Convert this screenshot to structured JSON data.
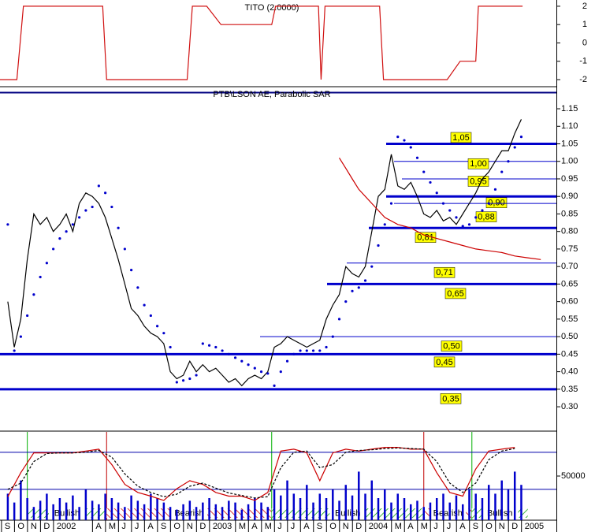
{
  "chart_data": [
    {
      "type": "line",
      "title": "TITO (2.0000)",
      "x": [
        -0.6,
        0.7,
        1.2,
        7.3,
        7.6,
        13.8,
        14.2,
        15.3,
        16.4,
        20.3,
        20.6,
        23.9,
        24.1,
        24.4,
        28.6,
        28.9,
        33.8,
        34.8,
        36.0,
        36.2,
        39.6
      ],
      "values": [
        -2,
        -2,
        2,
        2,
        -2,
        -2,
        2,
        2,
        1,
        1,
        2,
        2,
        -2,
        2,
        2,
        -2,
        -2,
        -1,
        -1,
        2,
        2
      ],
      "color": "#d01010",
      "xlim": [
        -0.6,
        42.2
      ],
      "ylim": [
        -2.3,
        2.34
      ],
      "yticks": [
        -2,
        -1,
        0,
        1,
        2
      ]
    },
    {
      "type": "line",
      "title": "PTB\\LSON AE, Parabolic SAR",
      "x": [
        0,
        0.5,
        1,
        1.5,
        2,
        2.5,
        3,
        3.5,
        4,
        4.5,
        5,
        5.5,
        6,
        6.5,
        7,
        7.5,
        8,
        8.5,
        9,
        9.5,
        10,
        10.5,
        11,
        11.5,
        12,
        12.5,
        13,
        13.5,
        14,
        14.5,
        15,
        15.5,
        16,
        16.5,
        17,
        17.5,
        18,
        18.5,
        19,
        19.5,
        20,
        20.5,
        21,
        21.5,
        22,
        22.5,
        23,
        23.5,
        24,
        24.5,
        25,
        25.5,
        26,
        26.5,
        27,
        27.5,
        28,
        28.5,
        29,
        29.5,
        30,
        30.5,
        31,
        31.5,
        32,
        32.5,
        33,
        33.5,
        34,
        34.5,
        35,
        35.5,
        36,
        36.5,
        37,
        37.5,
        38,
        38.5,
        39,
        39.5
      ],
      "series": [
        {
          "color": "#000000",
          "values": [
            0.6,
            0.47,
            0.55,
            0.72,
            0.85,
            0.82,
            0.84,
            0.8,
            0.82,
            0.85,
            0.8,
            0.88,
            0.91,
            0.9,
            0.88,
            0.84,
            0.78,
            0.72,
            0.65,
            0.58,
            0.56,
            0.53,
            0.51,
            0.5,
            0.48,
            0.4,
            0.38,
            0.39,
            0.43,
            0.4,
            0.42,
            0.4,
            0.41,
            0.39,
            0.37,
            0.38,
            0.36,
            0.38,
            0.39,
            0.38,
            0.4,
            0.47,
            0.48,
            0.5,
            0.49,
            0.48,
            0.47,
            0.48,
            0.49,
            0.55,
            0.59,
            0.62,
            0.7,
            0.68,
            0.67,
            0.7,
            0.8,
            0.9,
            0.92,
            1.02,
            0.93,
            0.92,
            0.94,
            0.9,
            0.85,
            0.84,
            0.86,
            0.83,
            0.84,
            0.82,
            0.85,
            0.88,
            0.91,
            0.95,
            0.97,
            1.0,
            1.03,
            1.03,
            1.08,
            1.12
          ]
        },
        {
          "color": "#0000cc",
          "style": "dots",
          "values": [
            0.82,
            0.46,
            0.5,
            0.56,
            0.62,
            0.67,
            0.71,
            0.75,
            0.78,
            0.8,
            0.82,
            0.84,
            0.86,
            0.87,
            0.93,
            0.91,
            0.87,
            0.81,
            0.75,
            0.69,
            0.64,
            0.59,
            0.56,
            0.53,
            0.51,
            0.47,
            0.37,
            0.375,
            0.38,
            0.39,
            0.48,
            0.475,
            0.47,
            0.46,
            0.45,
            0.44,
            0.43,
            0.42,
            0.41,
            0.4,
            0.395,
            0.36,
            0.4,
            0.43,
            0.45,
            0.46,
            0.46,
            0.46,
            0.46,
            0.47,
            0.5,
            0.55,
            0.6,
            0.63,
            0.64,
            0.66,
            0.7,
            0.76,
            0.82,
            0.88,
            1.07,
            1.06,
            1.04,
            1.01,
            0.97,
            0.94,
            0.91,
            0.88,
            0.86,
            0.84,
            0.815,
            0.82,
            0.84,
            0.86,
            0.88,
            0.92,
            0.97,
            1.0,
            1.04,
            1.07
          ]
        },
        {
          "color": "#cc0000",
          "x": [
            25.5,
            26,
            26.5,
            27,
            28,
            29,
            30,
            31,
            32,
            33,
            34,
            35,
            36,
            37,
            38,
            39,
            40,
            41
          ],
          "values": [
            1.01,
            0.98,
            0.95,
            0.92,
            0.88,
            0.84,
            0.82,
            0.81,
            0.79,
            0.78,
            0.77,
            0.76,
            0.75,
            0.745,
            0.74,
            0.73,
            0.725,
            0.72
          ]
        }
      ],
      "levels": [
        1.05,
        1.0,
        0.95,
        0.9,
        0.88,
        0.81,
        0.71,
        0.65,
        0.5,
        0.45,
        0.35
      ],
      "level_labels": [
        "1,05",
        "1,00",
        "0,95",
        "0,90",
        "0,88",
        "0,81",
        "0,71",
        "0,65",
        "0,50",
        "0,45",
        "0,35"
      ],
      "level_color": "#0000cc",
      "label_color": "#ffff00",
      "xlim": [
        -0.6,
        42.2
      ],
      "ylim": [
        0.235,
        1.195
      ],
      "yticks": [
        {
          "value": 0.3,
          "label": "0.30"
        },
        {
          "value": 0.35,
          "label": "0.35"
        },
        {
          "value": 0.4,
          "label": "0.40"
        },
        {
          "value": 0.45,
          "label": "0.45"
        },
        {
          "value": 0.5,
          "label": "0.50"
        },
        {
          "value": 0.55,
          "label": "0.55"
        },
        {
          "value": 0.6,
          "label": "0.60"
        },
        {
          "value": 0.65,
          "label": "0.65"
        },
        {
          "value": 0.7,
          "label": "0.70"
        },
        {
          "value": 0.75,
          "label": "0.75"
        },
        {
          "value": 0.8,
          "label": "0.80"
        },
        {
          "value": 0.85,
          "label": "0.85"
        },
        {
          "value": 0.9,
          "label": "0.90"
        },
        {
          "value": 0.95,
          "label": "0.95"
        },
        {
          "value": 1.0,
          "label": "1.00"
        },
        {
          "value": 1.05,
          "label": "1.05"
        },
        {
          "value": 1.1,
          "label": "1.10"
        },
        {
          "value": 1.15,
          "label": "1.15"
        }
      ]
    },
    {
      "type": "bar",
      "x": [
        0,
        0.5,
        1,
        1.5,
        2,
        2.5,
        3,
        3.5,
        4,
        4.5,
        5,
        5.5,
        6,
        6.5,
        7,
        7.5,
        8,
        8.5,
        9,
        9.5,
        10,
        10.5,
        11,
        11.5,
        12,
        12.5,
        13,
        13.5,
        14,
        14.5,
        15,
        15.5,
        16,
        16.5,
        17,
        17.5,
        18,
        18.5,
        19,
        19.5,
        20,
        20.5,
        21,
        21.5,
        22,
        22.5,
        23,
        23.5,
        24,
        24.5,
        25,
        25.5,
        26,
        26.5,
        27,
        27.5,
        28,
        28.5,
        29,
        29.5,
        30,
        30.5,
        31,
        31.5,
        32,
        32.5,
        33,
        33.5,
        34,
        34.5,
        35,
        35.5,
        36,
        36.5,
        37,
        37.5,
        38,
        38.5,
        39,
        39.5
      ],
      "values": [
        30000,
        20000,
        45000,
        25000,
        15000,
        22000,
        30000,
        18000,
        25000,
        20000,
        28000,
        15000,
        35000,
        22000,
        18000,
        30000,
        25000,
        20000,
        15000,
        28000,
        22000,
        18000,
        30000,
        25000,
        20000,
        15000,
        12000,
        18000,
        22000,
        15000,
        20000,
        25000,
        18000,
        15000,
        22000,
        20000,
        12000,
        18000,
        25000,
        20000,
        15000,
        35000,
        28000,
        45000,
        30000,
        25000,
        40000,
        20000,
        30000,
        25000,
        35000,
        22000,
        40000,
        28000,
        55000,
        30000,
        45000,
        25000,
        35000,
        20000,
        30000,
        25000,
        18000,
        22000,
        15000,
        20000,
        25000,
        30000,
        20000,
        28000,
        18000,
        35000,
        30000,
        25000,
        40000,
        30000,
        45000,
        35000,
        55000,
        40000
      ],
      "color": "#0000cc",
      "xlim": [
        -0.6,
        42.2
      ],
      "ylim": [
        0,
        100000
      ],
      "yticks": [
        50000
      ],
      "series": [
        {
          "color": "#cc0000",
          "axis": "y2",
          "x": [
            0,
            1,
            2,
            3,
            4,
            5,
            6,
            7,
            8,
            9,
            10,
            11,
            12,
            13,
            14,
            15,
            16,
            17,
            18,
            19,
            20,
            21,
            22,
            23,
            24,
            25,
            26,
            27,
            28,
            29,
            30,
            31,
            32,
            33,
            34,
            35,
            36,
            37,
            38,
            39
          ],
          "values": [
            8,
            47,
            79,
            79,
            79,
            79,
            82,
            85,
            60,
            28,
            15,
            9,
            2,
            21,
            34,
            28,
            15,
            9,
            9,
            2,
            15,
            82,
            85,
            79,
            34,
            79,
            85,
            82,
            85,
            88,
            88,
            85,
            85,
            47,
            15,
            9,
            53,
            82,
            85,
            88
          ]
        },
        {
          "color": "#000000",
          "axis": "y2",
          "style": "dashed",
          "x": [
            0,
            1,
            2,
            3,
            4,
            5,
            6,
            7,
            8,
            9,
            10,
            11,
            12,
            13,
            14,
            15,
            16,
            17,
            18,
            19,
            20,
            21,
            22,
            23,
            24,
            25,
            26,
            27,
            28,
            29,
            30,
            31,
            32,
            33,
            34,
            35,
            36,
            37,
            38,
            39
          ],
          "values": [
            20,
            30,
            65,
            78,
            79,
            79,
            80,
            83,
            72,
            45,
            25,
            15,
            8,
            12,
            25,
            30,
            22,
            14,
            10,
            6,
            8,
            55,
            80,
            82,
            55,
            60,
            80,
            83,
            84,
            86,
            87,
            86,
            85,
            65,
            30,
            15,
            30,
            68,
            82,
            86
          ]
        }
      ],
      "y2lim": [
        -30,
        113
      ],
      "levels": [
        80,
        20
      ],
      "regions": [
        {
          "label": "Bullish",
          "start": 1.5,
          "end": 7.6
        },
        {
          "label": "Bearish",
          "start": 7.6,
          "end": 20.3
        },
        {
          "label": "Bullish",
          "start": 20.3,
          "end": 32
        },
        {
          "label": "Bearish",
          "start": 32,
          "end": 35.7
        },
        {
          "label": "Bullish",
          "start": 35.7,
          "end": 40
        }
      ],
      "xticks": [
        {
          "value": 0,
          "label": "S"
        },
        {
          "value": 1,
          "label": "O"
        },
        {
          "value": 2,
          "label": "N"
        },
        {
          "value": 3,
          "label": "D"
        },
        {
          "value": 4,
          "label": "2002"
        },
        {
          "value": 7,
          "label": "A"
        },
        {
          "value": 8,
          "label": "M"
        },
        {
          "value": 9,
          "label": "J"
        },
        {
          "value": 10,
          "label": "J"
        },
        {
          "value": 11,
          "label": "A"
        },
        {
          "value": 12,
          "label": "S"
        },
        {
          "value": 13,
          "label": "O"
        },
        {
          "value": 14,
          "label": "N"
        },
        {
          "value": 15,
          "label": "D"
        },
        {
          "value": 16,
          "label": "2003"
        },
        {
          "value": 18,
          "label": "M"
        },
        {
          "value": 19,
          "label": "A"
        },
        {
          "value": 20,
          "label": "M"
        },
        {
          "value": 21,
          "label": "J"
        },
        {
          "value": 22,
          "label": "J"
        },
        {
          "value": 23,
          "label": "A"
        },
        {
          "value": 24,
          "label": "S"
        },
        {
          "value": 25,
          "label": "O"
        },
        {
          "value": 26,
          "label": "N"
        },
        {
          "value": 27,
          "label": "D"
        },
        {
          "value": 28,
          "label": "2004"
        },
        {
          "value": 30,
          "label": "M"
        },
        {
          "value": 31,
          "label": "A"
        },
        {
          "value": 32,
          "label": "M"
        },
        {
          "value": 33,
          "label": "J"
        },
        {
          "value": 34,
          "label": "J"
        },
        {
          "value": 35,
          "label": "A"
        },
        {
          "value": 36,
          "label": "S"
        },
        {
          "value": 37,
          "label": "O"
        },
        {
          "value": 38,
          "label": "N"
        },
        {
          "value": 39,
          "label": "D"
        },
        {
          "value": 40,
          "label": "2005"
        }
      ]
    }
  ]
}
